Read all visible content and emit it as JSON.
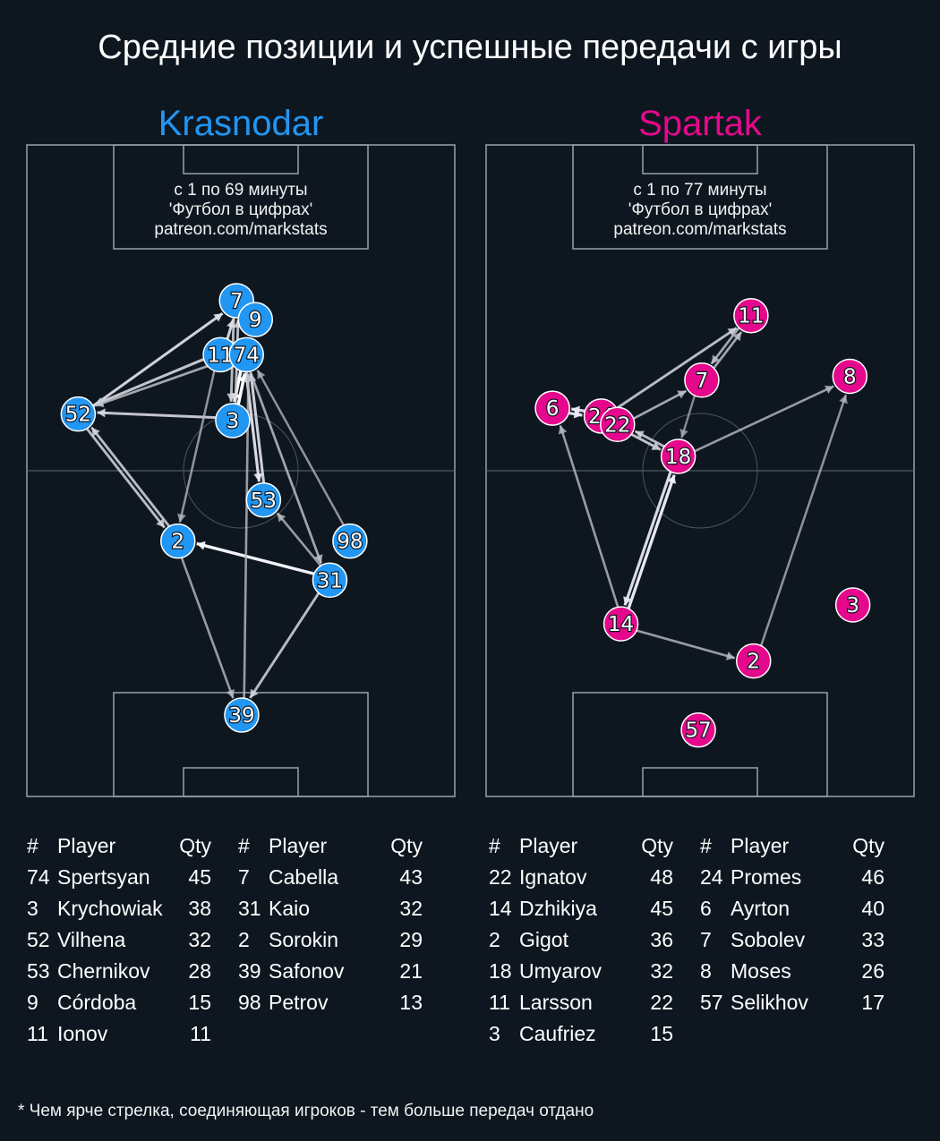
{
  "title": "Средние позиции и успешные передачи с игры",
  "footnote": "* Чем ярче стрелка, соединяющая игроков - тем больше передач отдано",
  "colors": {
    "background": "#0e1720",
    "pitch_lines": "#8e9ba3",
    "krasnodar": "#2196f3",
    "spartak": "#e6088c"
  },
  "chart_data": [
    {
      "type": "scatter",
      "team": "Krasnodar",
      "color": "#2196f3",
      "info_lines": [
        "с 1 по 69 минуты",
        "'Футбол в цифрах'",
        "patreon.com/markstats"
      ],
      "players": [
        {
          "num": "7",
          "x": 49,
          "y": 76.1
        },
        {
          "num": "9",
          "x": 53.4,
          "y": 73.2
        },
        {
          "num": "11",
          "x": 45.2,
          "y": 67.8
        },
        {
          "num": "74",
          "x": 51.3,
          "y": 67.8
        },
        {
          "num": "52",
          "x": 12,
          "y": 58.7
        },
        {
          "num": "3",
          "x": 48.1,
          "y": 57.7
        },
        {
          "num": "53",
          "x": 55.3,
          "y": 45.5
        },
        {
          "num": "98",
          "x": 75.5,
          "y": 39.2
        },
        {
          "num": "2",
          "x": 35.3,
          "y": 39.2
        },
        {
          "num": "31",
          "x": 70.8,
          "y": 33.2
        },
        {
          "num": "39",
          "x": 50.2,
          "y": 12.5
        }
      ],
      "passes": [
        {
          "from": "74",
          "to": "3",
          "strength": 1.0
        },
        {
          "from": "3",
          "to": "74",
          "strength": 1.0
        },
        {
          "from": "31",
          "to": "2",
          "strength": 0.95
        },
        {
          "from": "74",
          "to": "53",
          "strength": 0.85
        },
        {
          "from": "53",
          "to": "74",
          "strength": 0.8
        },
        {
          "from": "11",
          "to": "7",
          "strength": 0.8
        },
        {
          "from": "11",
          "to": "52",
          "strength": 0.75
        },
        {
          "from": "52",
          "to": "7",
          "strength": 0.8
        },
        {
          "from": "3",
          "to": "52",
          "strength": 0.75
        },
        {
          "from": "2",
          "to": "52",
          "strength": 0.7
        },
        {
          "from": "52",
          "to": "2",
          "strength": 0.7
        },
        {
          "from": "31",
          "to": "39",
          "strength": 0.7
        },
        {
          "from": "74",
          "to": "31",
          "strength": 0.6
        },
        {
          "from": "98",
          "to": "74",
          "strength": 0.5
        },
        {
          "from": "2",
          "to": "39",
          "strength": 0.55
        },
        {
          "from": "39",
          "to": "74",
          "strength": 0.55
        },
        {
          "from": "11",
          "to": "2",
          "strength": 0.5
        },
        {
          "from": "31",
          "to": "53",
          "strength": 0.55
        },
        {
          "from": "74",
          "to": "52",
          "strength": 0.6
        },
        {
          "from": "3",
          "to": "7",
          "strength": 0.7
        },
        {
          "from": "7",
          "to": "3",
          "strength": 0.7
        }
      ],
      "roster": {
        "header": {
          "num": "#",
          "player": "Player",
          "qty": "Qty"
        },
        "col1": [
          {
            "num": "74",
            "player": "Spertsyan",
            "qty": 45
          },
          {
            "num": "3",
            "player": "Krychowiak",
            "qty": 38
          },
          {
            "num": "52",
            "player": "Vilhena",
            "qty": 32
          },
          {
            "num": "53",
            "player": "Chernikov",
            "qty": 28
          },
          {
            "num": "9",
            "player": "Córdoba",
            "qty": 15
          },
          {
            "num": "11",
            "player": "Ionov",
            "qty": 11
          }
        ],
        "col2": [
          {
            "num": "7",
            "player": "Cabella",
            "qty": 43
          },
          {
            "num": "31",
            "player": "Kaio",
            "qty": 32
          },
          {
            "num": "2",
            "player": "Sorokin",
            "qty": 29
          },
          {
            "num": "39",
            "player": "Safonov",
            "qty": 21
          },
          {
            "num": "98",
            "player": "Petrov",
            "qty": 13
          }
        ]
      }
    },
    {
      "type": "scatter",
      "team": "Spartak",
      "color": "#e6088c",
      "info_lines": [
        "с 1 по 77 минуты",
        "'Футбол в цифрах'",
        "patreon.com/markstats"
      ],
      "players": [
        {
          "num": "11",
          "x": 61.9,
          "y": 73.8
        },
        {
          "num": "8",
          "x": 85,
          "y": 64.5
        },
        {
          "num": "7",
          "x": 50.4,
          "y": 63.9
        },
        {
          "num": "6",
          "x": 15.5,
          "y": 59.6
        },
        {
          "num": "24",
          "x": 26.9,
          "y": 58.4
        },
        {
          "num": "22",
          "x": 30.7,
          "y": 57.1
        },
        {
          "num": "18",
          "x": 44.9,
          "y": 52.2
        },
        {
          "num": "3",
          "x": 85.7,
          "y": 29.4
        },
        {
          "num": "14",
          "x": 31.5,
          "y": 26.5
        },
        {
          "num": "2",
          "x": 62.5,
          "y": 20.8
        },
        {
          "num": "57",
          "x": 49.6,
          "y": 10.2
        }
      ],
      "passes": [
        {
          "from": "14",
          "to": "18",
          "strength": 0.9
        },
        {
          "from": "18",
          "to": "14",
          "strength": 0.85
        },
        {
          "from": "24",
          "to": "6",
          "strength": 0.85
        },
        {
          "from": "6",
          "to": "24",
          "strength": 0.85
        },
        {
          "from": "24",
          "to": "11",
          "strength": 0.7
        },
        {
          "from": "11",
          "to": "7",
          "strength": 0.6
        },
        {
          "from": "7",
          "to": "11",
          "strength": 0.6
        },
        {
          "from": "22",
          "to": "7",
          "strength": 0.6
        },
        {
          "from": "22",
          "to": "18",
          "strength": 0.7
        },
        {
          "from": "18",
          "to": "22",
          "strength": 0.7
        },
        {
          "from": "24",
          "to": "18",
          "strength": 0.6
        },
        {
          "from": "18",
          "to": "8",
          "strength": 0.55
        },
        {
          "from": "14",
          "to": "6",
          "strength": 0.55
        },
        {
          "from": "14",
          "to": "2",
          "strength": 0.55
        },
        {
          "from": "2",
          "to": "8",
          "strength": 0.5
        },
        {
          "from": "7",
          "to": "18",
          "strength": 0.45
        }
      ],
      "roster": {
        "header": {
          "num": "#",
          "player": "Player",
          "qty": "Qty"
        },
        "col1": [
          {
            "num": "22",
            "player": "Ignatov",
            "qty": 48
          },
          {
            "num": "14",
            "player": "Dzhikiya",
            "qty": 45
          },
          {
            "num": "2",
            "player": "Gigot",
            "qty": 36
          },
          {
            "num": "18",
            "player": "Umyarov",
            "qty": 32
          },
          {
            "num": "11",
            "player": "Larsson",
            "qty": 22
          },
          {
            "num": "3",
            "player": "Caufriez",
            "qty": 15
          }
        ],
        "col2": [
          {
            "num": "24",
            "player": "Promes",
            "qty": 46
          },
          {
            "num": "6",
            "player": "Ayrton",
            "qty": 40
          },
          {
            "num": "7",
            "player": "Sobolev",
            "qty": 33
          },
          {
            "num": "8",
            "player": "Moses",
            "qty": 26
          },
          {
            "num": "57",
            "player": "Selikhov",
            "qty": 17
          }
        ]
      }
    }
  ]
}
